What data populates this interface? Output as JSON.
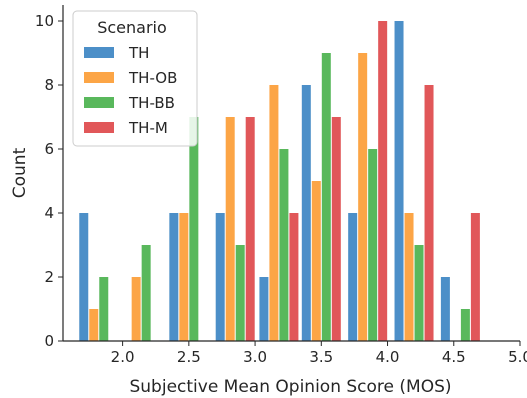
{
  "chart_data": {
    "type": "bar",
    "xlabel": "Subjective Mean Opinion Score (MOS)",
    "ylabel": "Count",
    "xlim": [
      1.55,
      5.0
    ],
    "ylim": [
      0,
      10.5
    ],
    "xticks": [
      "2.0",
      "2.5",
      "3.0",
      "3.5",
      "4.0",
      "4.5",
      "5.0"
    ],
    "xtick_values": [
      2.0,
      2.5,
      3.0,
      3.5,
      4.0,
      4.5,
      5.0
    ],
    "yticks": [
      "0",
      "2",
      "4",
      "6",
      "8",
      "10"
    ],
    "ytick_values": [
      0,
      2,
      4,
      6,
      8,
      10
    ],
    "bin_centers": [
      1.82,
      2.14,
      2.5,
      2.85,
      3.18,
      3.5,
      3.85,
      4.2,
      4.55
    ],
    "legend": {
      "title": "Scenario",
      "position": "upper-left"
    },
    "grid": false,
    "series": [
      {
        "name": "TH",
        "color": "#4c8fc8",
        "values": [
          4,
          0,
          4,
          4,
          2,
          8,
          4,
          10,
          2
        ]
      },
      {
        "name": "TH-OB",
        "color": "#fca546",
        "values": [
          1,
          2,
          4,
          7,
          8,
          5,
          9,
          4,
          0
        ]
      },
      {
        "name": "TH-BB",
        "color": "#59b85c",
        "values": [
          2,
          3,
          7,
          3,
          6,
          9,
          6,
          3,
          1
        ]
      },
      {
        "name": "TH-M",
        "color": "#e15759",
        "values": [
          0,
          0,
          0,
          7,
          4,
          7,
          10,
          8,
          4
        ]
      }
    ]
  }
}
